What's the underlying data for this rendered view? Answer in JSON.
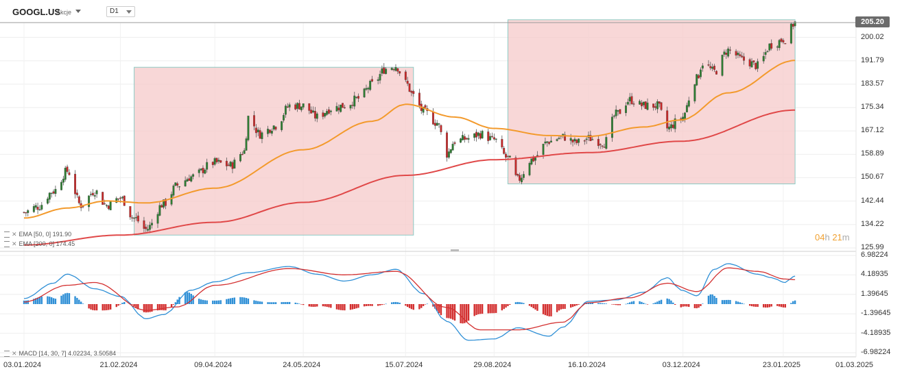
{
  "header": {
    "symbol": "GOOGL.US",
    "asset_type": "Akcje",
    "timeframe": "D1"
  },
  "price_tag": "205.20",
  "countdown": {
    "hours": "04",
    "h": "h",
    "minutes": "21",
    "m": "m"
  },
  "legend": {
    "ema50": "EMA [50, 0] 191.90",
    "ema200": "EMA [200, 0] 174.45",
    "macd": "MACD [14, 30, 7] 4.02234, 3.50584"
  },
  "colors": {
    "bull": "#2e7d32",
    "bear": "#c62828",
    "ema50": "#f39a2c",
    "ema200": "#e04848",
    "macd_line": "#2e8fd6",
    "signal": "#d32f2f",
    "box_fill": "#f6c9c9",
    "box_stroke": "#8ccac4"
  },
  "chart_data": [
    {
      "type": "candlestick",
      "series": [
        {
          "name": "EMA [50, 0]",
          "last": 191.9
        },
        {
          "name": "EMA [200, 0]",
          "last": 174.45
        }
      ],
      "y_ticks": [
        "205.20",
        "200.02",
        "191.79",
        "183.57",
        "175.34",
        "167.12",
        "158.89",
        "150.67",
        "142.44",
        "134.22",
        "125.99"
      ],
      "ylim": [
        125.99,
        205.2
      ],
      "x_ticks": [
        "03.01.2024",
        "21.02.2024",
        "09.04.2024",
        "24.05.2024",
        "15.07.2024",
        "29.08.2024",
        "16.10.2024",
        "03.12.2024",
        "23.01.2025",
        "01.03.2025"
      ],
      "price_anchors": [
        [
          "2024-01-03",
          138.5
        ],
        [
          "2024-01-10",
          140.5
        ],
        [
          "2024-01-18",
          146.0
        ],
        [
          "2024-01-25",
          153.0
        ],
        [
          "2024-02-01",
          141.0
        ],
        [
          "2024-02-08",
          146.0
        ],
        [
          "2024-02-14",
          141.0
        ],
        [
          "2024-02-21",
          143.5
        ],
        [
          "2024-02-28",
          136.5
        ],
        [
          "2024-03-05",
          132.5
        ],
        [
          "2024-03-14",
          141.5
        ],
        [
          "2024-03-21",
          148.0
        ],
        [
          "2024-03-28",
          151.0
        ],
        [
          "2024-04-09",
          156.0
        ],
        [
          "2024-04-17",
          155.0
        ],
        [
          "2024-04-24",
          160.0
        ],
        [
          "2024-04-26",
          172.0
        ],
        [
          "2024-05-02",
          166.0
        ],
        [
          "2024-05-10",
          169.0
        ],
        [
          "2024-05-17",
          176.0
        ],
        [
          "2024-05-24",
          176.0
        ],
        [
          "2024-05-31",
          172.0
        ],
        [
          "2024-06-07",
          175.0
        ],
        [
          "2024-06-14",
          176.0
        ],
        [
          "2024-06-21",
          178.5
        ],
        [
          "2024-06-28",
          183.5
        ],
        [
          "2024-07-05",
          189.0
        ],
        [
          "2024-07-10",
          190.0
        ],
        [
          "2024-07-15",
          184.0
        ],
        [
          "2024-07-19",
          179.5
        ],
        [
          "2024-07-24",
          174.0
        ],
        [
          "2024-07-31",
          170.0
        ],
        [
          "2024-08-05",
          159.0
        ],
        [
          "2024-08-09",
          163.5
        ],
        [
          "2024-08-16",
          164.5
        ],
        [
          "2024-08-22",
          166.0
        ],
        [
          "2024-08-29",
          164.0
        ],
        [
          "2024-09-05",
          157.5
        ],
        [
          "2024-09-10",
          150.0
        ],
        [
          "2024-09-17",
          157.0
        ],
        [
          "2024-09-26",
          163.5
        ],
        [
          "2024-10-03",
          165.0
        ],
        [
          "2024-10-10",
          163.0
        ],
        [
          "2024-10-16",
          164.5
        ],
        [
          "2024-10-24",
          163.0
        ],
        [
          "2024-10-30",
          173.0
        ],
        [
          "2024-11-06",
          178.0
        ],
        [
          "2024-11-13",
          176.0
        ],
        [
          "2024-11-20",
          176.0
        ],
        [
          "2024-11-25",
          168.0
        ],
        [
          "2024-12-02",
          171.5
        ],
        [
          "2024-12-10",
          185.5
        ],
        [
          "2024-12-13",
          191.0
        ],
        [
          "2024-12-19",
          188.0
        ],
        [
          "2024-12-26",
          195.5
        ],
        [
          "2025-01-03",
          192.0
        ],
        [
          "2025-01-10",
          190.0
        ],
        [
          "2025-01-17",
          197.5
        ],
        [
          "2025-01-24",
          199.5
        ],
        [
          "2025-01-29",
          205.2
        ]
      ],
      "ema50_anchors": [
        [
          "2024-01-03",
          136.5
        ],
        [
          "2024-01-25",
          140.0
        ],
        [
          "2024-02-14",
          142.5
        ],
        [
          "2024-03-05",
          141.8
        ],
        [
          "2024-04-09",
          147.0
        ],
        [
          "2024-05-24",
          160.5
        ],
        [
          "2024-06-28",
          170.5
        ],
        [
          "2024-07-15",
          176.5
        ],
        [
          "2024-08-09",
          172.0
        ],
        [
          "2024-08-29",
          168.0
        ],
        [
          "2024-09-26",
          165.5
        ],
        [
          "2024-10-16",
          165.2
        ],
        [
          "2024-11-13",
          168.5
        ],
        [
          "2024-12-02",
          171.0
        ],
        [
          "2024-12-26",
          180.5
        ],
        [
          "2025-01-29",
          191.9
        ]
      ],
      "ema200_anchors": [
        [
          "2024-01-03",
          127.0
        ],
        [
          "2024-02-21",
          130.5
        ],
        [
          "2024-04-09",
          135.0
        ],
        [
          "2024-05-24",
          142.0
        ],
        [
          "2024-07-15",
          151.5
        ],
        [
          "2024-08-29",
          157.0
        ],
        [
          "2024-10-16",
          159.5
        ],
        [
          "2024-12-02",
          163.5
        ],
        [
          "2025-01-29",
          174.45
        ]
      ],
      "rectangles": [
        {
          "from": "2024-02-28",
          "to": "2024-07-19",
          "low": 130.5,
          "high": 189.5
        },
        {
          "from": "2024-09-05",
          "to": "2025-01-29",
          "low": 148.5,
          "high": 206.2
        }
      ]
    },
    {
      "type": "macd",
      "y_ticks": [
        "6.98224",
        "4.18935",
        "1.39645",
        "-1.39645",
        "-4.18935",
        "-6.98224"
      ],
      "ylim": [
        -6.98224,
        6.98224
      ],
      "macd_anchors": [
        [
          "2024-01-03",
          0.8
        ],
        [
          "2024-01-18",
          3.0
        ],
        [
          "2024-01-25",
          4.3
        ],
        [
          "2024-02-08",
          2.2
        ],
        [
          "2024-02-21",
          1.1
        ],
        [
          "2024-03-05",
          -2.1
        ],
        [
          "2024-03-14",
          -1.5
        ],
        [
          "2024-03-28",
          2.0
        ],
        [
          "2024-04-09",
          3.2
        ],
        [
          "2024-04-26",
          4.5
        ],
        [
          "2024-05-17",
          5.4
        ],
        [
          "2024-05-31",
          4.3
        ],
        [
          "2024-06-14",
          3.3
        ],
        [
          "2024-06-28",
          4.2
        ],
        [
          "2024-07-10",
          5.0
        ],
        [
          "2024-07-24",
          1.5
        ],
        [
          "2024-08-05",
          -2.5
        ],
        [
          "2024-08-16",
          -5.2
        ],
        [
          "2024-08-29",
          -5.0
        ],
        [
          "2024-09-10",
          -3.4
        ],
        [
          "2024-09-26",
          -4.6
        ],
        [
          "2024-10-03",
          -3.3
        ],
        [
          "2024-10-16",
          0.4
        ],
        [
          "2024-10-30",
          0.6
        ],
        [
          "2024-11-13",
          1.7
        ],
        [
          "2024-11-25",
          3.8
        ],
        [
          "2024-12-02",
          2.0
        ],
        [
          "2024-12-10",
          1.2
        ],
        [
          "2024-12-19",
          5.0
        ],
        [
          "2024-12-26",
          5.8
        ],
        [
          "2025-01-10",
          4.3
        ],
        [
          "2025-01-17",
          3.8
        ],
        [
          "2025-01-24",
          3.1
        ],
        [
          "2025-01-29",
          4.02234
        ]
      ],
      "signal_anchors": [
        [
          "2024-01-03",
          0.3
        ],
        [
          "2024-01-25",
          2.7
        ],
        [
          "2024-02-08",
          3.1
        ],
        [
          "2024-03-05",
          -0.9
        ],
        [
          "2024-03-21",
          -0.4
        ],
        [
          "2024-04-09",
          2.7
        ],
        [
          "2024-05-17",
          5.1
        ],
        [
          "2024-06-14",
          4.2
        ],
        [
          "2024-07-10",
          4.7
        ],
        [
          "2024-08-05",
          -0.5
        ],
        [
          "2024-08-22",
          -3.7
        ],
        [
          "2024-09-10",
          -3.7
        ],
        [
          "2024-10-03",
          -2.6
        ],
        [
          "2024-10-16",
          0.2
        ],
        [
          "2024-11-06",
          0.9
        ],
        [
          "2024-11-25",
          3.0
        ],
        [
          "2024-12-10",
          1.8
        ],
        [
          "2024-12-26",
          5.2
        ],
        [
          "2025-01-10",
          4.7
        ],
        [
          "2025-01-24",
          3.6
        ],
        [
          "2025-01-29",
          3.50584
        ]
      ]
    }
  ]
}
